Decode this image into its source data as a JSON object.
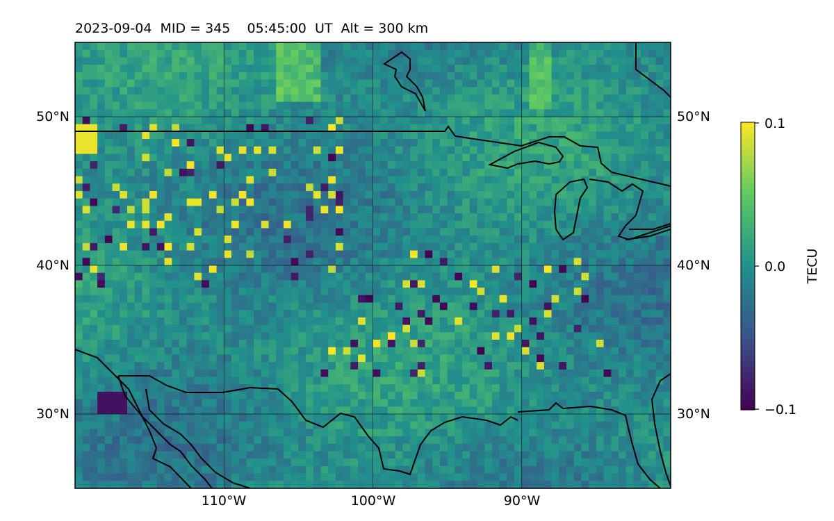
{
  "title": "2023-09-04  MID = 345    05:45:00  UT  Alt = 300 km",
  "map": {
    "lat_labels": [
      "50°N",
      "40°N",
      "30°N"
    ],
    "lon_labels": [
      "110°W",
      "100°W",
      "90°W"
    ],
    "lat_ticks": [
      50,
      40,
      30
    ],
    "lon_ticks": [
      -110,
      -100,
      -90
    ],
    "lat_range": [
      25,
      55
    ],
    "lon_range": [
      -120,
      -80
    ],
    "field": "TEC perturbation",
    "colormap": "viridis",
    "gridlines": true
  },
  "colorbar": {
    "label": "TECU",
    "ticks": [
      "0.1",
      "0.0",
      "−0.1"
    ],
    "range": [
      -0.1,
      0.1
    ],
    "colors": [
      "#440154",
      "#3b528b",
      "#21918c",
      "#5ec962",
      "#fde725"
    ]
  }
}
